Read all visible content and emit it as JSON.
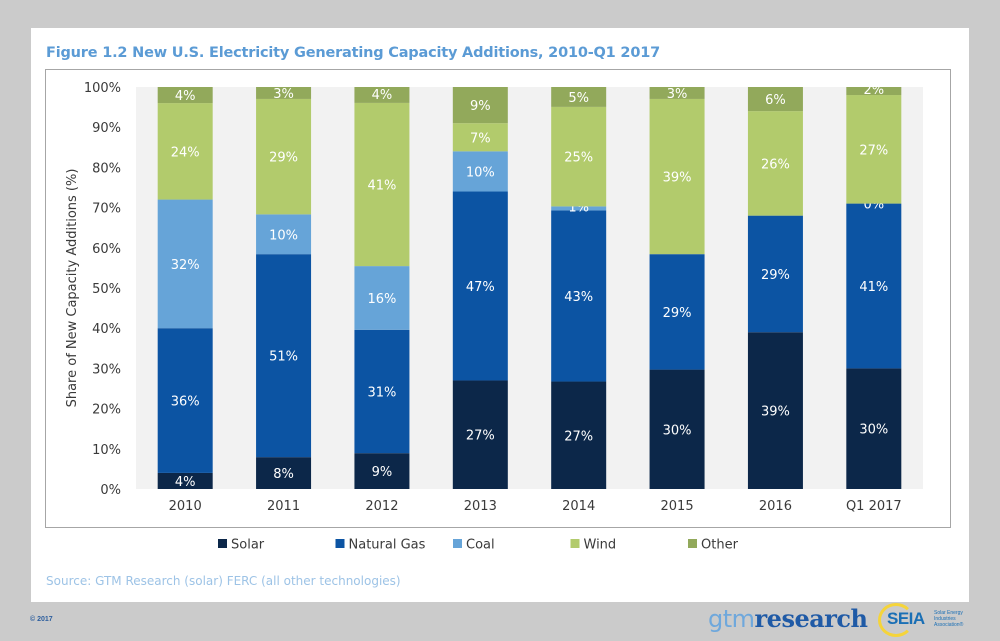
{
  "figure_title": "Figure 1.2 New U.S. Electricity Generating Capacity Additions, 2010-Q1 2017",
  "source_note": "Source: GTM Research (solar) FERC (all other technologies)",
  "copyright": "© 2017",
  "logos": {
    "gtm_prefix": "gtm",
    "gtm_suffix": "research",
    "seia": "SEIA",
    "seia_subtitle": "Solar Energy Industries Association®"
  },
  "chart_data": {
    "type": "bar",
    "stacked": true,
    "title": "Figure 1.2 New U.S. Electricity Generating Capacity Additions, 2010-Q1 2017",
    "xlabel": "",
    "ylabel": "Share of New Capacity Additions (%)",
    "ylim": [
      0,
      100
    ],
    "yticks": [
      "0%",
      "10%",
      "20%",
      "30%",
      "40%",
      "50%",
      "60%",
      "70%",
      "80%",
      "90%",
      "100%"
    ],
    "grid": false,
    "legend_position": "bottom",
    "categories": [
      "2010",
      "2011",
      "2012",
      "2013",
      "2014",
      "2015",
      "2016",
      "Q1 2017"
    ],
    "series": [
      {
        "name": "Solar",
        "color": "#0c2749",
        "values": [
          4,
          8,
          9,
          27,
          27,
          30,
          39,
          30
        ],
        "labels": [
          "4%",
          "8%",
          "9%",
          "27%",
          "27%",
          "30%",
          "39%",
          "30%"
        ]
      },
      {
        "name": "Natural Gas",
        "color": "#0c54a3",
        "values": [
          36,
          51,
          31,
          47,
          43,
          29,
          29,
          41
        ],
        "labels": [
          "36%",
          "51%",
          "31%",
          "47%",
          "43%",
          "29%",
          "29%",
          "41%"
        ]
      },
      {
        "name": "Coal",
        "color": "#66a4d8",
        "values": [
          32,
          10,
          16,
          10,
          1,
          0,
          0,
          0
        ],
        "labels": [
          "32%",
          "10%",
          "16%",
          "10%",
          "1%",
          "",
          "",
          "0%"
        ]
      },
      {
        "name": "Wind",
        "color": "#b2cb6c",
        "values": [
          24,
          29,
          41,
          7,
          25,
          39,
          26,
          27
        ],
        "labels": [
          "24%",
          "29%",
          "41%",
          "7%",
          "25%",
          "39%",
          "26%",
          "27%"
        ]
      },
      {
        "name": "Other",
        "color": "#92a95b",
        "values": [
          4,
          3,
          4,
          9,
          5,
          3,
          6,
          2
        ],
        "labels": [
          "4%",
          "3%",
          "4%",
          "9%",
          "5%",
          "3%",
          "6%",
          "2%"
        ]
      }
    ]
  }
}
